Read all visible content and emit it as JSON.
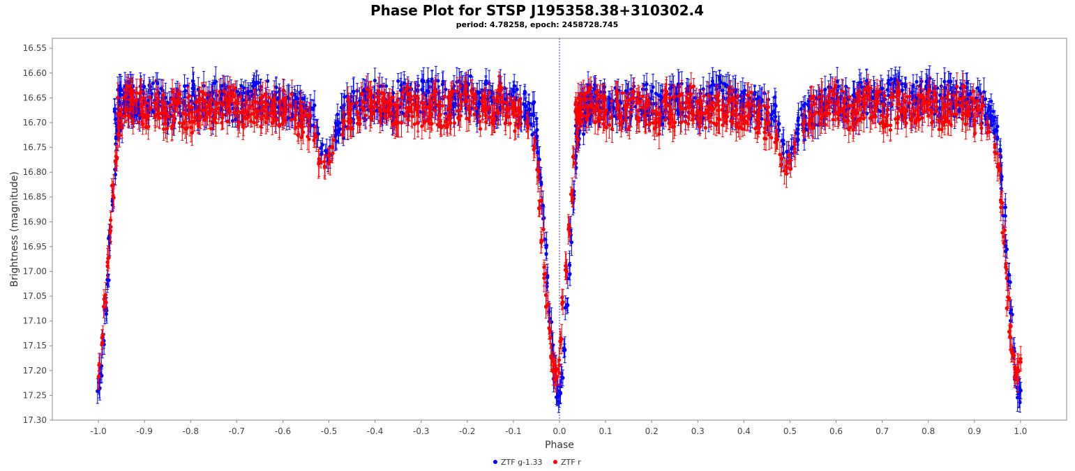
{
  "chart_data": {
    "type": "scatter",
    "title": "Phase Plot for STSP J195358.38+310302.4",
    "subtitle": "period: 4.78258, epoch: 2458728.745",
    "xlabel": "Phase",
    "ylabel": "Brightness (magnitude)",
    "xlim": [
      -1.1,
      1.1
    ],
    "ylim": [
      16.53,
      17.3
    ],
    "y_inverted": true,
    "x_ticks": [
      "-1.0",
      "-0.9",
      "-0.8",
      "-0.7",
      "-0.6",
      "-0.5",
      "-0.4",
      "-0.3",
      "-0.2",
      "-0.1",
      "0.0",
      "0.1",
      "0.2",
      "0.3",
      "0.4",
      "0.5",
      "0.6",
      "0.7",
      "0.8",
      "0.9",
      "1.0"
    ],
    "y_ticks": [
      "16.55",
      "16.60",
      "16.65",
      "16.70",
      "16.75",
      "16.80",
      "16.85",
      "16.90",
      "16.95",
      "17.00",
      "17.05",
      "17.10",
      "17.15",
      "17.20",
      "17.25",
      "17.30"
    ],
    "grid": false,
    "reference_line_x": 0.0,
    "legend_position": "bottom-center",
    "error_bars": true,
    "series": [
      {
        "name": "ZTF g-1.33",
        "color": "#0000ff",
        "x": [
          -1.0,
          -0.995,
          -0.99,
          -0.985,
          -0.98,
          -0.975,
          -0.97,
          -0.965,
          -0.96,
          -0.955,
          -0.95,
          -0.94,
          -0.93,
          -0.92,
          -0.9,
          -0.88,
          -0.86,
          -0.84,
          -0.82,
          -0.8,
          -0.78,
          -0.76,
          -0.74,
          -0.72,
          -0.7,
          -0.68,
          -0.66,
          -0.64,
          -0.62,
          -0.6,
          -0.58,
          -0.56,
          -0.54,
          -0.525,
          -0.515,
          -0.505,
          -0.495,
          -0.485,
          -0.475,
          -0.46,
          -0.44,
          -0.42,
          -0.4,
          -0.38,
          -0.36,
          -0.34,
          -0.32,
          -0.3,
          -0.28,
          -0.26,
          -0.24,
          -0.22,
          -0.2,
          -0.18,
          -0.16,
          -0.14,
          -0.12,
          -0.1,
          -0.08,
          -0.06,
          -0.05,
          -0.045,
          -0.04,
          -0.035,
          -0.03,
          -0.025,
          -0.02,
          -0.015,
          -0.01,
          -0.005,
          0.0,
          0.005,
          0.01,
          0.015,
          0.02,
          0.025,
          0.03,
          0.035,
          0.04,
          0.045,
          0.05,
          0.06,
          0.07,
          0.08,
          0.1,
          0.12,
          0.14,
          0.16,
          0.18,
          0.2,
          0.22,
          0.24,
          0.26,
          0.28,
          0.3,
          0.32,
          0.34,
          0.36,
          0.38,
          0.4,
          0.42,
          0.44,
          0.46,
          0.475,
          0.485,
          0.495,
          0.505,
          0.515,
          0.525,
          0.54,
          0.56,
          0.58,
          0.6,
          0.62,
          0.64,
          0.66,
          0.68,
          0.7,
          0.72,
          0.74,
          0.76,
          0.78,
          0.8,
          0.82,
          0.84,
          0.86,
          0.88,
          0.9,
          0.92,
          0.94,
          0.95,
          0.955,
          0.96,
          0.965,
          0.97,
          0.975,
          0.98,
          0.985,
          0.99,
          0.995,
          1.0
        ],
        "y": [
          17.23,
          17.2,
          17.15,
          17.08,
          17.02,
          16.94,
          16.86,
          16.79,
          16.73,
          16.69,
          16.66,
          16.65,
          16.66,
          16.67,
          16.66,
          16.65,
          16.66,
          16.67,
          16.66,
          16.65,
          16.66,
          16.67,
          16.65,
          16.66,
          16.67,
          16.66,
          16.64,
          16.65,
          16.66,
          16.67,
          16.66,
          16.67,
          16.68,
          16.71,
          16.75,
          16.77,
          16.76,
          16.73,
          16.7,
          16.68,
          16.67,
          16.66,
          16.65,
          16.66,
          16.67,
          16.65,
          16.66,
          16.65,
          16.64,
          16.65,
          16.66,
          16.65,
          16.64,
          16.66,
          16.65,
          16.66,
          16.65,
          16.66,
          16.67,
          16.69,
          16.72,
          16.76,
          16.82,
          16.88,
          16.95,
          17.02,
          17.09,
          17.16,
          17.21,
          17.24,
          17.25,
          17.22,
          17.15,
          17.08,
          17.0,
          16.93,
          16.85,
          16.78,
          16.73,
          16.69,
          16.67,
          16.66,
          16.65,
          16.66,
          16.65,
          16.66,
          16.67,
          16.66,
          16.65,
          16.66,
          16.67,
          16.66,
          16.65,
          16.66,
          16.67,
          16.66,
          16.64,
          16.65,
          16.66,
          16.67,
          16.66,
          16.67,
          16.68,
          16.71,
          16.75,
          16.77,
          16.76,
          16.73,
          16.7,
          16.68,
          16.67,
          16.66,
          16.65,
          16.66,
          16.67,
          16.65,
          16.66,
          16.65,
          16.64,
          16.65,
          16.66,
          16.65,
          16.64,
          16.66,
          16.65,
          16.66,
          16.65,
          16.66,
          16.67,
          16.69,
          16.72,
          16.76,
          16.82,
          16.88,
          16.95,
          17.02,
          17.09,
          17.16,
          17.21,
          17.24,
          17.25
        ]
      },
      {
        "name": "ZTF r",
        "color": "#ff0000",
        "x": [
          -0.998,
          -0.992,
          -0.986,
          -0.98,
          -0.974,
          -0.968,
          -0.962,
          -0.956,
          -0.95,
          -0.935,
          -0.915,
          -0.895,
          -0.87,
          -0.85,
          -0.83,
          -0.81,
          -0.79,
          -0.77,
          -0.75,
          -0.73,
          -0.71,
          -0.69,
          -0.67,
          -0.65,
          -0.63,
          -0.61,
          -0.59,
          -0.57,
          -0.55,
          -0.53,
          -0.52,
          -0.51,
          -0.5,
          -0.49,
          -0.47,
          -0.45,
          -0.43,
          -0.41,
          -0.39,
          -0.37,
          -0.35,
          -0.33,
          -0.31,
          -0.29,
          -0.27,
          -0.25,
          -0.23,
          -0.21,
          -0.19,
          -0.17,
          -0.15,
          -0.13,
          -0.11,
          -0.09,
          -0.07,
          -0.055,
          -0.047,
          -0.042,
          -0.037,
          -0.032,
          -0.027,
          -0.022,
          -0.017,
          -0.012,
          -0.007,
          -0.002,
          0.002,
          0.008,
          0.014,
          0.02,
          0.026,
          0.032,
          0.038,
          0.044,
          0.05,
          0.065,
          0.085,
          0.105,
          0.13,
          0.15,
          0.17,
          0.19,
          0.21,
          0.23,
          0.25,
          0.27,
          0.29,
          0.31,
          0.33,
          0.35,
          0.37,
          0.39,
          0.41,
          0.43,
          0.45,
          0.47,
          0.48,
          0.49,
          0.5,
          0.51,
          0.53,
          0.55,
          0.57,
          0.59,
          0.61,
          0.63,
          0.65,
          0.67,
          0.69,
          0.71,
          0.73,
          0.75,
          0.77,
          0.79,
          0.81,
          0.83,
          0.85,
          0.87,
          0.89,
          0.91,
          0.93,
          0.945,
          0.953,
          0.958,
          0.963,
          0.968,
          0.973,
          0.978,
          0.983,
          0.988,
          0.993,
          0.998
        ],
        "y": [
          17.2,
          17.14,
          17.06,
          16.98,
          16.91,
          16.84,
          16.77,
          16.72,
          16.68,
          16.66,
          16.67,
          16.68,
          16.67,
          16.68,
          16.67,
          16.68,
          16.69,
          16.67,
          16.68,
          16.67,
          16.66,
          16.68,
          16.67,
          16.68,
          16.67,
          16.68,
          16.67,
          16.69,
          16.7,
          16.73,
          16.77,
          16.79,
          16.78,
          16.75,
          16.71,
          16.68,
          16.67,
          16.66,
          16.67,
          16.68,
          16.67,
          16.66,
          16.67,
          16.68,
          16.67,
          16.68,
          16.67,
          16.66,
          16.67,
          16.68,
          16.67,
          16.66,
          16.67,
          16.69,
          16.71,
          16.75,
          16.8,
          16.86,
          16.93,
          17.0,
          17.06,
          17.12,
          17.17,
          17.2,
          17.21,
          17.19,
          17.13,
          17.06,
          16.99,
          16.92,
          16.85,
          16.78,
          16.73,
          16.69,
          16.67,
          16.66,
          16.67,
          16.68,
          16.67,
          16.68,
          16.67,
          16.68,
          16.69,
          16.67,
          16.68,
          16.67,
          16.66,
          16.68,
          16.67,
          16.68,
          16.67,
          16.68,
          16.67,
          16.69,
          16.7,
          16.73,
          16.77,
          16.79,
          16.78,
          16.75,
          16.71,
          16.68,
          16.67,
          16.66,
          16.67,
          16.68,
          16.67,
          16.66,
          16.67,
          16.68,
          16.67,
          16.68,
          16.67,
          16.66,
          16.67,
          16.68,
          16.67,
          16.66,
          16.67,
          16.69,
          16.71,
          16.75,
          16.8,
          16.86,
          16.93,
          17.0,
          17.06,
          17.12,
          17.17,
          17.2,
          17.21,
          17.19
        ]
      }
    ]
  }
}
